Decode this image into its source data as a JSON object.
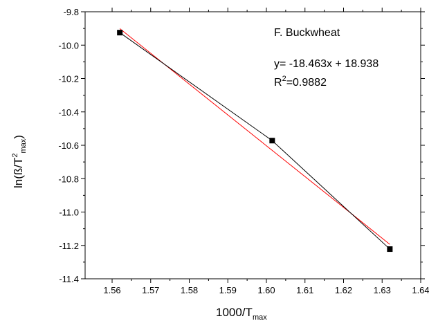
{
  "chart_data": {
    "type": "scatter",
    "x": [
      1.562,
      1.6015,
      1.632
    ],
    "series": [
      {
        "values": [
          -9.925,
          -10.572,
          -11.222
        ],
        "color": "#000000",
        "marker": "square",
        "connected": true
      },
      {
        "fit": true,
        "slope": -18.463,
        "intercept": 18.938,
        "x_range": [
          1.562,
          1.632
        ],
        "color": "#ff0000"
      }
    ],
    "xlabel": {
      "main": "1000/T",
      "sub": "max"
    },
    "ylabel": {
      "pre": "ln(ß/T",
      "sup": "2",
      "sub": "max",
      "post": ")"
    },
    "xlim": [
      1.553,
      1.64
    ],
    "ylim": [
      -11.4,
      -9.8
    ],
    "xticks": [
      "1.56",
      "1.57",
      "1.58",
      "1.59",
      "1.60",
      "1.61",
      "1.62",
      "1.63",
      "1.64"
    ],
    "yticks": [
      "-9.8",
      "-10.0",
      "-10.2",
      "-10.4",
      "-10.6",
      "-10.8",
      "-11.0",
      "-11.2",
      "-11.4"
    ],
    "annotations": {
      "sample": "F. Buckwheat",
      "equation": "y= -18.463x + 18.938",
      "r2_prefix": "R",
      "r2_sup": "2",
      "r2_value": "=0.9882"
    },
    "grid": false,
    "legend": "none"
  }
}
